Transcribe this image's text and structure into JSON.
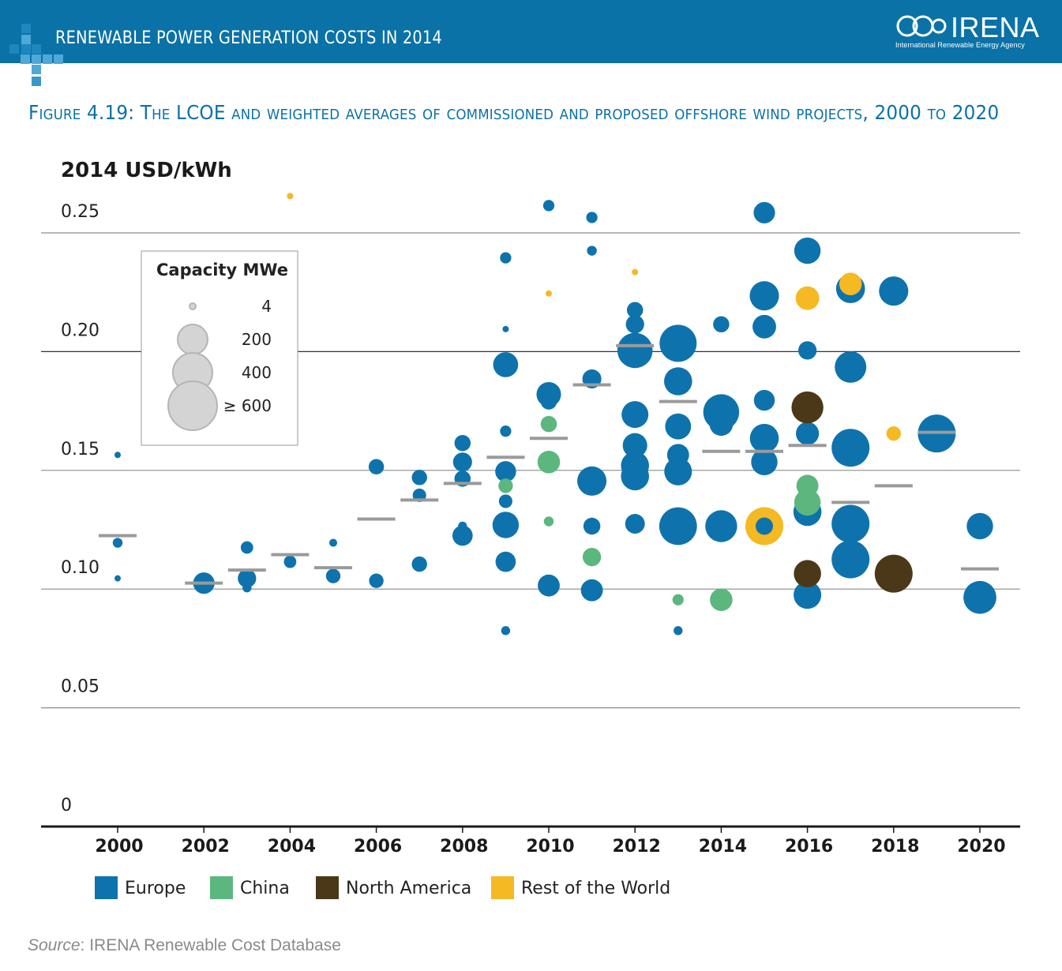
{
  "header": {
    "title": "RENEWABLE POWER GENERATION COSTS IN 2014",
    "logo_word": "IRENA",
    "logo_tagline": "International Renewable Energy Agency"
  },
  "figure_title": "Figure 4.19: The LCOE and weighted averages of commissioned and proposed offshore wind projects, 2000 to 2020",
  "source": {
    "label": "Source",
    "text": ": IRENA Renewable Cost Database"
  },
  "colors": {
    "header": "#0a72a6",
    "Europe": "#0e73ad",
    "China": "#5bb77d",
    "North America": "#4a3818",
    "Rest of the World": "#f4b923",
    "average": "#9a9a9a"
  },
  "chart_data": {
    "type": "scatter",
    "ylabel": "2014 USD/kWh",
    "ylim": [
      0,
      0.25
    ],
    "yticks": [
      "0",
      "0.05",
      "0.10",
      "0.15",
      "0.20",
      "0.25"
    ],
    "xlim": [
      1998.3,
      2020.9
    ],
    "xticks": [
      "2000",
      "2002",
      "2004",
      "2006",
      "2008",
      "2010",
      "2012",
      "2014",
      "2016",
      "2018",
      "2020"
    ],
    "size_legend": {
      "title": "Capacity MWe",
      "entries": [
        {
          "label": "4",
          "mw": 4
        },
        {
          "label": "200",
          "mw": 200
        },
        {
          "label": "400",
          "mw": 400
        },
        {
          "label": "≥ 600",
          "mw": 600
        }
      ]
    },
    "legend": [
      "Europe",
      "China",
      "North America",
      "Rest of the World"
    ],
    "weighted_averages": [
      {
        "x": 2000,
        "y": 0.1225
      },
      {
        "x": 2002,
        "y": 0.1025
      },
      {
        "x": 2003,
        "y": 0.108
      },
      {
        "x": 2004,
        "y": 0.1145
      },
      {
        "x": 2005,
        "y": 0.109
      },
      {
        "x": 2006,
        "y": 0.1295
      },
      {
        "x": 2007,
        "y": 0.1375
      },
      {
        "x": 2008,
        "y": 0.1445
      },
      {
        "x": 2009,
        "y": 0.1555
      },
      {
        "x": 2010,
        "y": 0.1635
      },
      {
        "x": 2011,
        "y": 0.186
      },
      {
        "x": 2012,
        "y": 0.2025
      },
      {
        "x": 2013,
        "y": 0.179
      },
      {
        "x": 2014,
        "y": 0.158
      },
      {
        "x": 2015,
        "y": 0.158
      },
      {
        "x": 2016,
        "y": 0.1605
      },
      {
        "x": 2017,
        "y": 0.1365
      },
      {
        "x": 2018,
        "y": 0.1435
      },
      {
        "x": 2019,
        "y": 0.166
      },
      {
        "x": 2020,
        "y": 0.1085
      }
    ],
    "series": [
      {
        "name": "Europe",
        "points": [
          {
            "x": 2000,
            "y": 0.1565,
            "mw": 4
          },
          {
            "x": 2000,
            "y": 0.1195,
            "mw": 20
          },
          {
            "x": 2000,
            "y": 0.1045,
            "mw": 4
          },
          {
            "x": 2002,
            "y": 0.1025,
            "mw": 160
          },
          {
            "x": 2003,
            "y": 0.1175,
            "mw": 40
          },
          {
            "x": 2003,
            "y": 0.1045,
            "mw": 110
          },
          {
            "x": 2003,
            "y": 0.1005,
            "mw": 15
          },
          {
            "x": 2004,
            "y": 0.1115,
            "mw": 40
          },
          {
            "x": 2005,
            "y": 0.1195,
            "mw": 10
          },
          {
            "x": 2005,
            "y": 0.1055,
            "mw": 60
          },
          {
            "x": 2006,
            "y": 0.1515,
            "mw": 70
          },
          {
            "x": 2006,
            "y": 0.1035,
            "mw": 60
          },
          {
            "x": 2007,
            "y": 0.147,
            "mw": 70
          },
          {
            "x": 2007,
            "y": 0.1395,
            "mw": 50
          },
          {
            "x": 2007,
            "y": 0.1105,
            "mw": 70
          },
          {
            "x": 2008,
            "y": 0.1615,
            "mw": 80
          },
          {
            "x": 2008,
            "y": 0.1535,
            "mw": 120
          },
          {
            "x": 2008,
            "y": 0.1465,
            "mw": 80
          },
          {
            "x": 2008,
            "y": 0.1265,
            "mw": 15
          },
          {
            "x": 2008,
            "y": 0.1225,
            "mw": 140
          },
          {
            "x": 2009,
            "y": 0.2395,
            "mw": 30
          },
          {
            "x": 2009,
            "y": 0.2095,
            "mw": 4
          },
          {
            "x": 2009,
            "y": 0.1945,
            "mw": 230
          },
          {
            "x": 2009,
            "y": 0.1665,
            "mw": 30
          },
          {
            "x": 2009,
            "y": 0.1495,
            "mw": 150
          },
          {
            "x": 2009,
            "y": 0.137,
            "mw": 50
          },
          {
            "x": 2009,
            "y": 0.127,
            "mw": 260
          },
          {
            "x": 2009,
            "y": 0.1115,
            "mw": 140
          },
          {
            "x": 2009,
            "y": 0.0825,
            "mw": 15
          },
          {
            "x": 2010,
            "y": 0.2615,
            "mw": 30
          },
          {
            "x": 2010,
            "y": 0.182,
            "mw": 220
          },
          {
            "x": 2010,
            "y": 0.179,
            "mw": 80
          },
          {
            "x": 2010,
            "y": 0.1015,
            "mw": 170
          },
          {
            "x": 2011,
            "y": 0.2565,
            "mw": 30
          },
          {
            "x": 2011,
            "y": 0.2425,
            "mw": 20
          },
          {
            "x": 2011,
            "y": 0.1885,
            "mw": 120
          },
          {
            "x": 2011,
            "y": 0.1455,
            "mw": 330
          },
          {
            "x": 2011,
            "y": 0.1265,
            "mw": 90
          },
          {
            "x": 2011,
            "y": 0.0995,
            "mw": 170
          },
          {
            "x": 2012,
            "y": 0.2175,
            "mw": 80
          },
          {
            "x": 2012,
            "y": 0.2115,
            "mw": 110
          },
          {
            "x": 2012,
            "y": 0.2005,
            "mw": 500
          },
          {
            "x": 2012,
            "y": 0.1735,
            "mw": 270
          },
          {
            "x": 2012,
            "y": 0.1605,
            "mw": 220
          },
          {
            "x": 2012,
            "y": 0.152,
            "mw": 300
          },
          {
            "x": 2012,
            "y": 0.1475,
            "mw": 300
          },
          {
            "x": 2012,
            "y": 0.1275,
            "mw": 130
          },
          {
            "x": 2013,
            "y": 0.2035,
            "mw": 560
          },
          {
            "x": 2013,
            "y": 0.1875,
            "mw": 300
          },
          {
            "x": 2013,
            "y": 0.1685,
            "mw": 250
          },
          {
            "x": 2013,
            "y": 0.1565,
            "mw": 170
          },
          {
            "x": 2013,
            "y": 0.1495,
            "mw": 290
          },
          {
            "x": 2013,
            "y": 0.1265,
            "mw": 580
          },
          {
            "x": 2013,
            "y": 0.0825,
            "mw": 15
          },
          {
            "x": 2014,
            "y": 0.2115,
            "mw": 80
          },
          {
            "x": 2014,
            "y": 0.1745,
            "mw": 520
          },
          {
            "x": 2014,
            "y": 0.1695,
            "mw": 200
          },
          {
            "x": 2014,
            "y": 0.1265,
            "mw": 400
          },
          {
            "x": 2015,
            "y": 0.2585,
            "mw": 160
          },
          {
            "x": 2015,
            "y": 0.2235,
            "mw": 330
          },
          {
            "x": 2015,
            "y": 0.2105,
            "mw": 200
          },
          {
            "x": 2015,
            "y": 0.1795,
            "mw": 150
          },
          {
            "x": 2015,
            "y": 0.1635,
            "mw": 320
          },
          {
            "x": 2015,
            "y": 0.1535,
            "mw": 260
          },
          {
            "x": 2015,
            "y": 0.1265,
            "mw": 200
          },
          {
            "x": 2016,
            "y": 0.2425,
            "mw": 260
          },
          {
            "x": 2016,
            "y": 0.2005,
            "mw": 110
          },
          {
            "x": 2016,
            "y": 0.1655,
            "mw": 190
          },
          {
            "x": 2016,
            "y": 0.1325,
            "mw": 300
          },
          {
            "x": 2016,
            "y": 0.0975,
            "mw": 290
          },
          {
            "x": 2017,
            "y": 0.2265,
            "mw": 320
          },
          {
            "x": 2017,
            "y": 0.1935,
            "mw": 390
          },
          {
            "x": 2017,
            "y": 0.1595,
            "mw": 600
          },
          {
            "x": 2017,
            "y": 0.1275,
            "mw": 600
          },
          {
            "x": 2017,
            "y": 0.1125,
            "mw": 600
          },
          {
            "x": 2018,
            "y": 0.2255,
            "mw": 330
          },
          {
            "x": 2019,
            "y": 0.1655,
            "mw": 600
          },
          {
            "x": 2020,
            "y": 0.1265,
            "mw": 260
          },
          {
            "x": 2020,
            "y": 0.0965,
            "mw": 430
          }
        ]
      },
      {
        "name": "China",
        "points": [
          {
            "x": 2009,
            "y": 0.1435,
            "mw": 60
          },
          {
            "x": 2010,
            "y": 0.1695,
            "mw": 80
          },
          {
            "x": 2010,
            "y": 0.1535,
            "mw": 180
          },
          {
            "x": 2010,
            "y": 0.1285,
            "mw": 20
          },
          {
            "x": 2011,
            "y": 0.1135,
            "mw": 110
          },
          {
            "x": 2013,
            "y": 0.0955,
            "mw": 30
          },
          {
            "x": 2014,
            "y": 0.0955,
            "mw": 180
          },
          {
            "x": 2016,
            "y": 0.1435,
            "mw": 170
          },
          {
            "x": 2016,
            "y": 0.1365,
            "mw": 260
          }
        ]
      },
      {
        "name": "North America",
        "points": [
          {
            "x": 2016,
            "y": 0.1765,
            "mw": 400
          },
          {
            "x": 2016,
            "y": 0.1065,
            "mw": 280
          },
          {
            "x": 2018,
            "y": 0.1065,
            "mw": 600
          }
        ]
      },
      {
        "name": "Rest of the World",
        "points": [
          {
            "x": 2004,
            "y": 0.2655,
            "mw": 4
          },
          {
            "x": 2010,
            "y": 0.2245,
            "mw": 4
          },
          {
            "x": 2012,
            "y": 0.2335,
            "mw": 4
          },
          {
            "x": 2015,
            "y": 0.1265,
            "mw": 600
          },
          {
            "x": 2016,
            "y": 0.2225,
            "mw": 200
          },
          {
            "x": 2017,
            "y": 0.2285,
            "mw": 180
          },
          {
            "x": 2018,
            "y": 0.1655,
            "mw": 60
          }
        ]
      }
    ]
  }
}
